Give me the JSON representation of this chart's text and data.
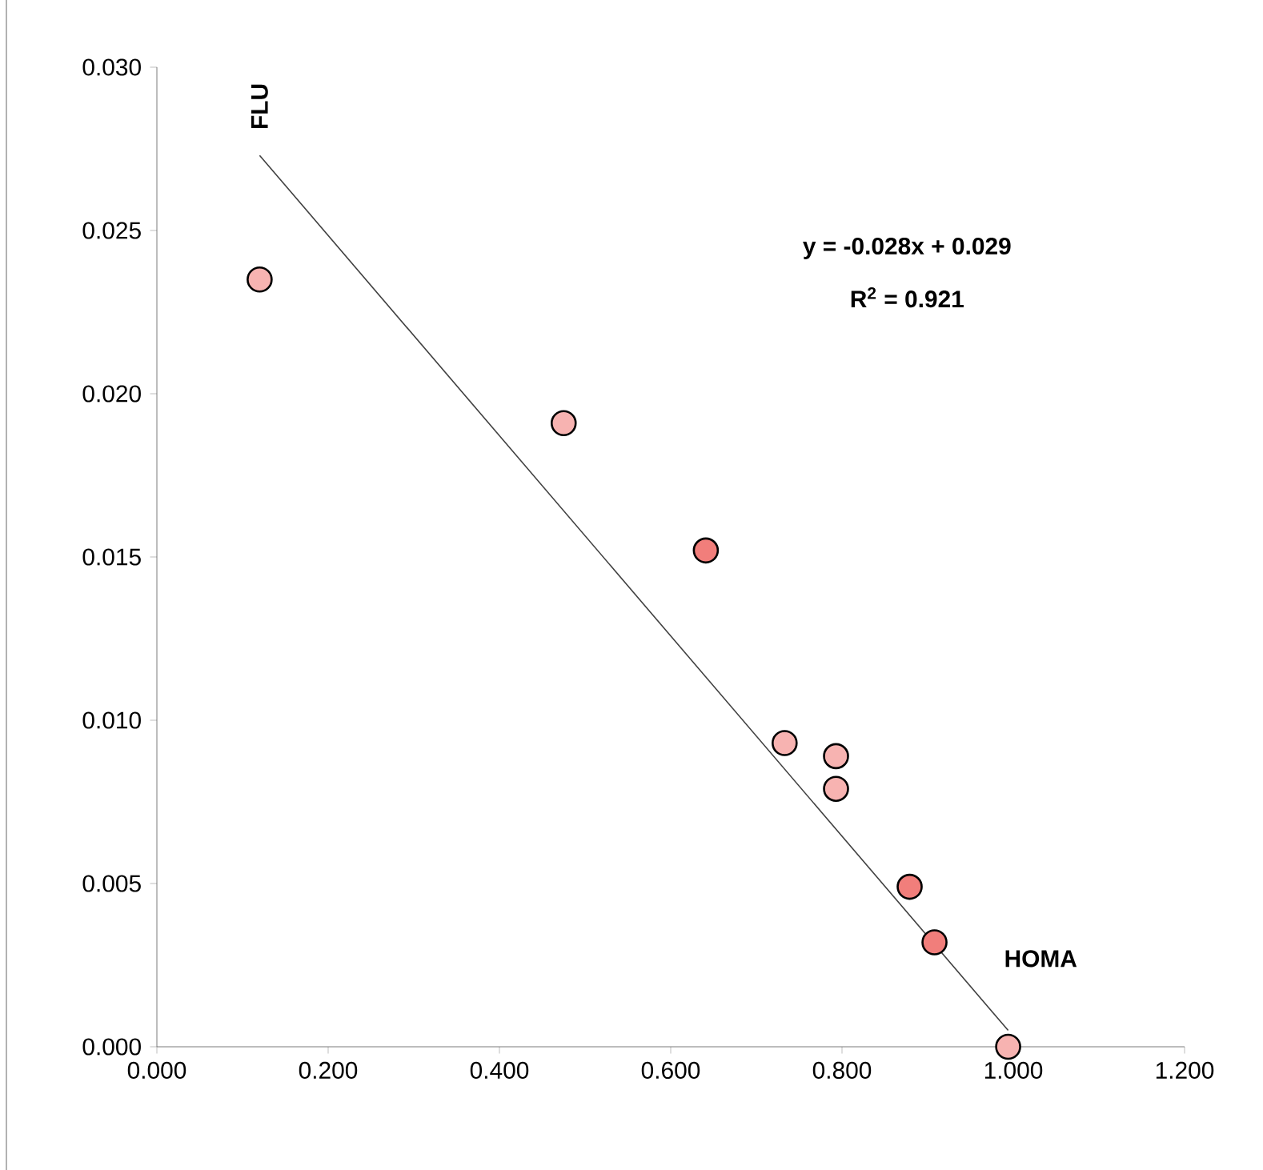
{
  "chart_data": {
    "type": "scatter",
    "xlabel": "HOMA",
    "ylabel": "FLU",
    "annotations": [
      "y = -0.028x + 0.029",
      "R$^{2}$ = 0.921"
    ],
    "xlim": [
      0,
      1.2
    ],
    "ylim": [
      0,
      0.03
    ],
    "xticks": [
      {
        "value": 0,
        "label": "0.000"
      },
      {
        "value": 0.2,
        "label": "0.200"
      },
      {
        "value": 0.4,
        "label": "0.400"
      },
      {
        "value": 0.6,
        "label": "0.600"
      },
      {
        "value": 0.8,
        "label": "0.800"
      },
      {
        "value": 1.0,
        "label": "1.000"
      },
      {
        "value": 1.2,
        "label": "1.200"
      }
    ],
    "yticks": [
      {
        "value": 0,
        "label": "0.000"
      },
      {
        "value": 0.005,
        "label": "0.005"
      },
      {
        "value": 0.01,
        "label": "0.010"
      },
      {
        "value": 0.015,
        "label": "0.015"
      },
      {
        "value": 0.02,
        "label": "0.020"
      },
      {
        "value": 0.025,
        "label": "0.025"
      },
      {
        "value": 0.03,
        "label": "0.030"
      }
    ],
    "series": [
      {
        "marker": "circle",
        "color": "#f7b3b1",
        "x": [
          0.12,
          0.475,
          0.733,
          0.793,
          0.793,
          0.994
        ],
        "values": [
          0.0235,
          0.0191,
          0.0093,
          0.0089,
          0.0079,
          0.0
        ]
      },
      {
        "marker": "circle",
        "color": "#f17e7b",
        "x": [
          0.641,
          0.879,
          0.908
        ],
        "values": [
          0.0152,
          0.0049,
          0.0032
        ]
      },
      {
        "type": "line",
        "marker": "none",
        "color": "#404040",
        "x": [
          0.12,
          0.994
        ],
        "values": [
          0.0273,
          0.0005
        ]
      }
    ]
  }
}
